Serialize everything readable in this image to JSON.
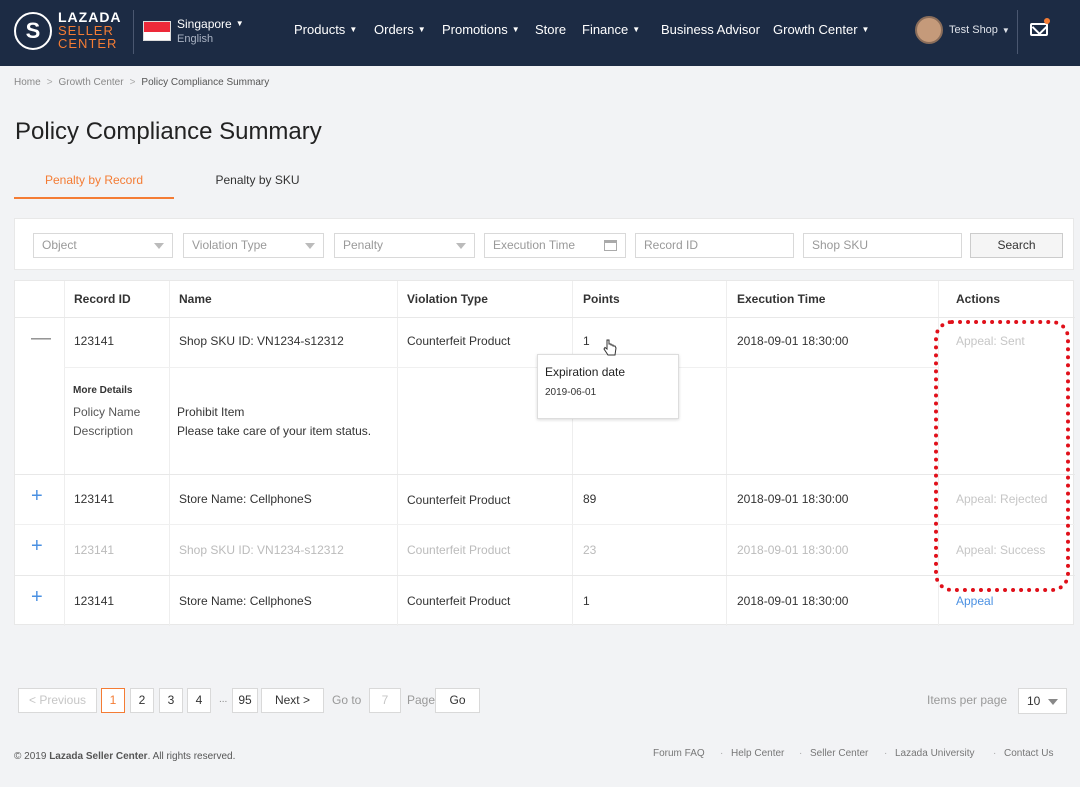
{
  "header": {
    "logo_badge": "S",
    "logo_line1": "LAZADA",
    "logo_line2": "SELLER",
    "logo_line3": "CENTER",
    "country": "Singapore",
    "language": "English",
    "nav": [
      "Products",
      "Orders",
      "Promotions",
      "Store",
      "Finance",
      "Business Advisor",
      "Growth Center"
    ],
    "user": "Test Shop"
  },
  "breadcrumb": [
    "Home",
    "Growth Center",
    "Policy Compliance Summary"
  ],
  "page_title": "Policy Compliance Summary",
  "tabs": [
    "Penalty by Record",
    "Penalty by SKU"
  ],
  "filters": {
    "object": "Object",
    "violation_type": "Violation Type",
    "penalty": "Penalty",
    "execution_time": "Execution Time",
    "record_id": "Record ID",
    "shop_sku": "Shop SKU",
    "search": "Search"
  },
  "table": {
    "columns": [
      "Record ID",
      "Name",
      "Violation Type",
      "Points",
      "Execution Time",
      "Actions"
    ],
    "rows": [
      {
        "control": "—",
        "id": "123141",
        "name": "Shop SKU ID: VN1234-s12312",
        "type": "Counterfeit Product",
        "points": "1",
        "time": "2018-09-01 18:30:00",
        "action": "Appeal: Sent"
      },
      {
        "control": "+",
        "id": "123141",
        "name": "Store Name: CellphoneS",
        "type": "Counterfeit Product",
        "points": "89",
        "time": "2018-09-01 18:30:00",
        "action": "Appeal: Rejected"
      },
      {
        "control": "+",
        "id": "123141",
        "name": "Shop SKU ID: VN1234-s12312",
        "type": "Counterfeit Product",
        "points": "23",
        "time": "2018-09-01 18:30:00",
        "action": "Appeal: Success"
      },
      {
        "control": "+",
        "id": "123141",
        "name": "Store Name: CellphoneS",
        "type": "Counterfeit Product",
        "points": "1",
        "time": "2018-09-01 18:30:00",
        "action": "Appeal"
      }
    ],
    "details": {
      "heading": "More Details",
      "policy_label": "Policy Name",
      "policy_value": "Prohibit Item",
      "desc_label": "Description",
      "desc_value": "Please take care of your item status."
    }
  },
  "tooltip": {
    "title": "Expiration date",
    "value": "2019-06-01"
  },
  "pagination": {
    "previous": "Previous",
    "pages": [
      "1",
      "2",
      "3",
      "4"
    ],
    "ellipsis": "...",
    "last": "95",
    "next": "Next",
    "goto_label": "Go to",
    "goto_value": "7",
    "page_label": "Page",
    "go": "Go",
    "items_label": "Items per page",
    "items_value": "10"
  },
  "footer": {
    "copyright_prefix": "© 2019",
    "copyright_brand": "Lazada Seller Center",
    "copyright_suffix": ". All rights reserved.",
    "links": [
      "Forum FAQ",
      "Help Center",
      "Seller Center",
      "Lazada University",
      "Contact Us"
    ]
  },
  "colors": {
    "header_bg": "#1c2b44",
    "accent": "#f47c34",
    "link": "#4a90e2",
    "highlight": "#e0101a"
  }
}
